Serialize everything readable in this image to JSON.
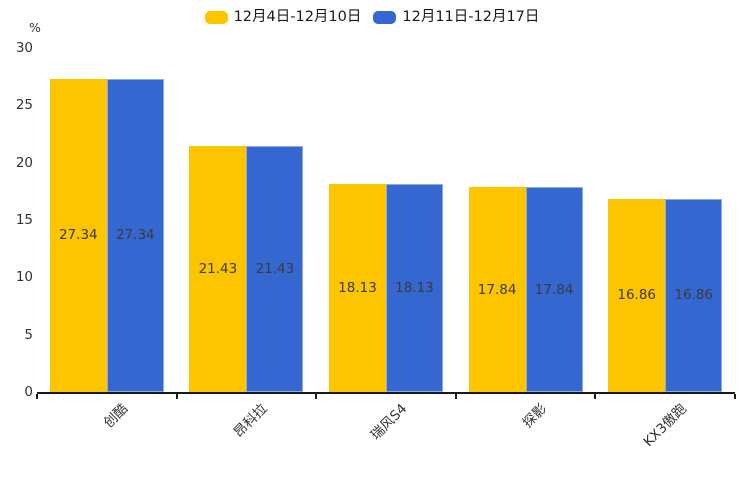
{
  "chart_data": {
    "type": "bar",
    "title": "",
    "unit_label": "%",
    "categories": [
      "创酷",
      "昂科拉",
      "瑞风S4",
      "探影",
      "KX3傲跑"
    ],
    "series": [
      {
        "name": "12月4日-12月10日",
        "color": "#FDC500",
        "values": [
          27.34,
          21.43,
          18.13,
          17.84,
          16.86
        ]
      },
      {
        "name": "12月11日-12月17日",
        "color": "#3567D0",
        "edge_color": "#8FA8E6",
        "values": [
          27.34,
          21.43,
          18.13,
          17.84,
          16.86
        ]
      }
    ],
    "ylim": [
      0,
      30
    ],
    "yticks": [
      0,
      5,
      10,
      15,
      20,
      25,
      30
    ],
    "legend_position": "top-center",
    "grid": false,
    "value_label_placement": "centered-inside-bars",
    "colors": {
      "background": "#ffffff",
      "axis": "#1a1a1a",
      "tick_label": "#333333",
      "bar_value_label": "#3a3a3a"
    }
  }
}
